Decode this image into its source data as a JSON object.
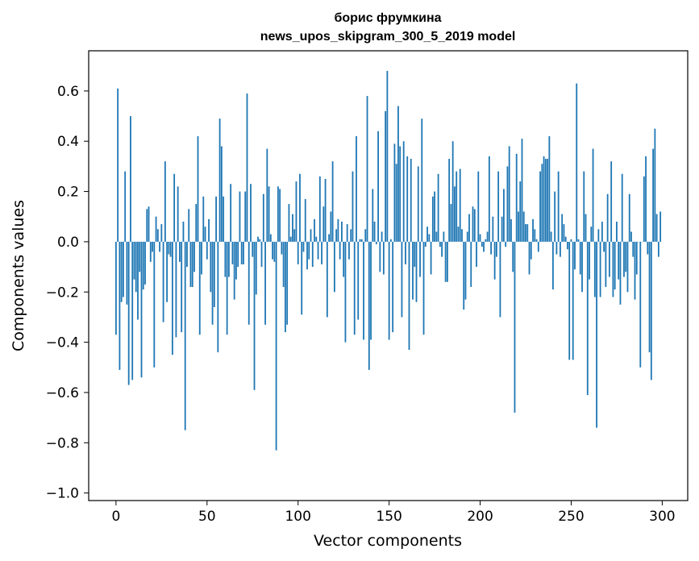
{
  "chart_data": {
    "type": "bar",
    "title": "борис фрумкина",
    "subtitle": "news_upos_skipgram_300_5_2019 model",
    "xlabel": "Vector components",
    "ylabel": "Components values",
    "xlim": [
      -15,
      314
    ],
    "ylim": [
      -1.03,
      0.76
    ],
    "xticks": [
      0,
      50,
      100,
      150,
      200,
      250,
      300
    ],
    "yticks": [
      -1.0,
      -0.8,
      -0.6,
      -0.4,
      -0.2,
      0.0,
      0.2,
      0.4,
      0.6
    ],
    "ytick_labels": [
      "−1.0",
      "−0.8",
      "−0.6",
      "−0.4",
      "−0.2",
      "0.0",
      "0.2",
      "0.4",
      "0.6"
    ],
    "grid": false,
    "bar_color": "#1f77b4",
    "values": [
      -0.37,
      0.61,
      -0.51,
      -0.24,
      -0.22,
      0.28,
      -0.25,
      -0.57,
      0.5,
      -0.55,
      -0.15,
      -0.2,
      -0.31,
      -0.12,
      -0.54,
      -0.19,
      -0.17,
      0.13,
      0.14,
      -0.08,
      -0.04,
      -0.5,
      0.1,
      0.05,
      -0.04,
      0.07,
      -0.32,
      0.32,
      -0.24,
      -0.05,
      -0.06,
      -0.45,
      0.27,
      -0.38,
      0.22,
      -0.08,
      -0.36,
      0.08,
      -0.75,
      -0.1,
      0.13,
      -0.18,
      -0.18,
      -0.12,
      0.15,
      0.42,
      -0.37,
      -0.13,
      0.18,
      0.06,
      -0.07,
      0.09,
      -0.2,
      -0.33,
      -0.26,
      0.18,
      -0.44,
      0.49,
      0.38,
      0.18,
      -0.14,
      -0.37,
      -0.14,
      0.23,
      -0.09,
      -0.23,
      -0.15,
      -0.1,
      0.2,
      -0.09,
      -0.09,
      0.2,
      0.59,
      -0.33,
      0.23,
      -0.06,
      -0.59,
      -0.21,
      0.02,
      0.01,
      -0.1,
      0.19,
      -0.33,
      0.37,
      0.22,
      0.03,
      -0.07,
      -0.08,
      -0.83,
      0.22,
      0.21,
      -0.05,
      -0.18,
      -0.36,
      -0.33,
      0.15,
      0.02,
      0.11,
      0.05,
      0.24,
      -0.09,
      0.27,
      -0.29,
      -0.04,
      0.17,
      -0.11,
      -0.07,
      0.05,
      -0.1,
      0.09,
      0.02,
      -0.07,
      0.26,
      -0.09,
      0.14,
      0.25,
      -0.3,
      0.03,
      0.12,
      0.32,
      -0.2,
      0.05,
      0.09,
      -0.07,
      0.08,
      -0.14,
      -0.4,
      0.07,
      -0.07,
      0.05,
      0.28,
      -0.37,
      0.42,
      -0.31,
      0.01,
      0.01,
      -0.39,
      0.05,
      0.58,
      -0.51,
      -0.39,
      0.21,
      0.08,
      -0.01,
      0.44,
      -0.12,
      0.04,
      -0.13,
      0.52,
      0.68,
      -0.39,
      0.01,
      -0.36,
      0.39,
      0.31,
      0.54,
      0.38,
      -0.3,
      0.4,
      -0.09,
      0.34,
      -0.43,
      0.33,
      -0.23,
      -0.1,
      -0.24,
      0.3,
      -0.14,
      0.49,
      -0.37,
      -0.02,
      0.06,
      0.03,
      -0.13,
      0.18,
      0.2,
      0.04,
      0.27,
      -0.02,
      -0.06,
      0.04,
      -0.16,
      -0.16,
      0.33,
      0.15,
      0.4,
      0.22,
      0.28,
      0.06,
      0.29,
      0.05,
      -0.27,
      -0.23,
      0.04,
      0.11,
      -0.18,
      0.14,
      0.13,
      -0.1,
      0.28,
      0.03,
      -0.02,
      -0.04,
      0.01,
      0.04,
      0.34,
      -0.05,
      0.1,
      -0.15,
      -0.06,
      0.28,
      -0.3,
      0.1,
      0.21,
      -0.02,
      0.3,
      0.38,
      0.09,
      -0.12,
      -0.68,
      0.35,
      0.12,
      0.24,
      0.41,
      0.12,
      0.07,
      0.07,
      -0.13,
      -0.07,
      0.09,
      0.05,
      0.01,
      -0.04,
      0.28,
      0.31,
      0.34,
      0.33,
      0.33,
      0.42,
      0.04,
      -0.19,
      0.2,
      -0.05,
      0.28,
      -0.06,
      0.11,
      0.07,
      0.02,
      -0.03,
      -0.47,
      0.01,
      -0.47,
      -0.11,
      0.63,
      0.01,
      -0.13,
      -0.2,
      0.28,
      0.11,
      -0.61,
      -0.15,
      0.06,
      0.37,
      -0.22,
      -0.74,
      0.05,
      -0.22,
      0.08,
      -0.04,
      -0.18,
      0.19,
      -0.14,
      0.32,
      -0.22,
      -0.19,
      0.08,
      -0.15,
      -0.25,
      0.27,
      -0.14,
      -0.12,
      -0.2,
      0.19,
      0.04,
      -0.06,
      -0.23,
      -0.13,
      0.0,
      -0.5,
      0.0,
      0.26,
      0.34,
      -0.05,
      -0.44,
      -0.55,
      0.37,
      0.45,
      0.11,
      -0.06,
      0.12
    ]
  }
}
